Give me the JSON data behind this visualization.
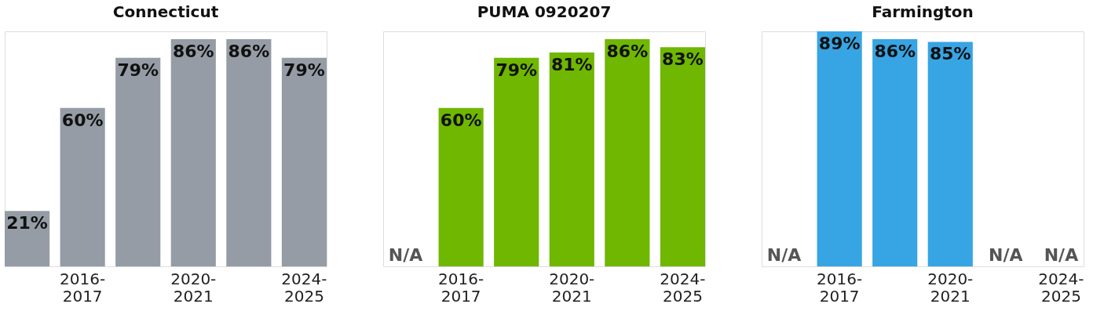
{
  "chart_data": [
    {
      "type": "bar",
      "title": "Connecticut",
      "categories": [
        null,
        "2016-2017",
        null,
        "2020-2021",
        null,
        "2024-2025"
      ],
      "values": [
        21,
        60,
        79,
        86,
        86,
        79
      ],
      "color": "#959ca5",
      "value_labels": [
        "21%",
        "60%",
        "79%",
        "86%",
        "86%",
        "79%"
      ],
      "tick_labels": "x"
    },
    {
      "type": "bar",
      "title": "PUMA 0920207",
      "categories": [
        null,
        "2016-2017",
        null,
        "2020-2021",
        null,
        "2024-2025"
      ],
      "values": [
        null,
        60,
        79,
        81,
        86,
        83
      ],
      "color": "#6fb700",
      "value_labels": [
        "N/A",
        "60%",
        "79%",
        "81%",
        "86%",
        "83%"
      ],
      "tick_labels": "x"
    },
    {
      "type": "bar",
      "title": "Farmington",
      "categories": [
        null,
        "2016-2017",
        null,
        "2020-2021",
        null,
        "2024-2025"
      ],
      "values": [
        null,
        89,
        86,
        85,
        null,
        null
      ],
      "color": "#37a4e3",
      "value_labels": [
        "N/A",
        "89%",
        "86%",
        "85%",
        "N/A",
        "N/A"
      ],
      "tick_labels": "x"
    }
  ]
}
